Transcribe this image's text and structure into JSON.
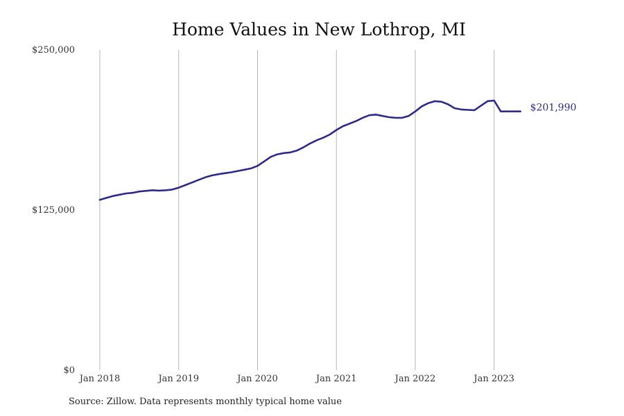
{
  "chart_data": {
    "type": "line",
    "title": "Home Values in New Lothrop, MI",
    "xlabel": "",
    "ylabel": "",
    "ylim": [
      0,
      250000
    ],
    "xlim": [
      "2018-01",
      "2023-10"
    ],
    "x_ticks": [
      "Jan 2018",
      "Jan 2019",
      "Jan 2020",
      "Jan 2021",
      "Jan 2022",
      "Jan 2023"
    ],
    "y_ticks": [
      "$0",
      "$125,000",
      "$250,000"
    ],
    "y_tick_values": [
      0,
      125000,
      250000
    ],
    "grid": "vertical",
    "line_color": "#2d2a8a",
    "end_label": "$201,990",
    "series": [
      {
        "x": [
          "2018-01",
          "2018-02",
          "2018-03",
          "2018-04",
          "2018-05",
          "2018-06",
          "2018-07",
          "2018-08",
          "2018-09",
          "2018-10",
          "2018-11",
          "2018-12",
          "2019-01",
          "2019-02",
          "2019-03",
          "2019-04",
          "2019-05",
          "2019-06",
          "2019-07",
          "2019-08",
          "2019-09",
          "2019-10",
          "2019-11",
          "2019-12",
          "2020-01",
          "2020-02",
          "2020-03",
          "2020-04",
          "2020-05",
          "2020-06",
          "2020-07",
          "2020-08",
          "2020-09",
          "2020-10",
          "2020-11",
          "2020-12",
          "2021-01",
          "2021-02",
          "2021-03",
          "2021-04",
          "2021-05",
          "2021-06",
          "2021-07",
          "2021-08",
          "2021-09",
          "2021-10",
          "2021-11",
          "2021-12",
          "2022-01",
          "2022-02",
          "2022-03",
          "2022-04",
          "2022-05",
          "2022-06",
          "2022-07",
          "2022-08",
          "2022-09",
          "2022-10",
          "2022-11",
          "2022-12",
          "2023-01",
          "2023-02",
          "2023-03",
          "2023-04",
          "2023-05"
        ],
        "values": [
          133000,
          134500,
          136000,
          137000,
          138000,
          138500,
          139500,
          140000,
          140500,
          140200,
          140500,
          141000,
          142500,
          144500,
          146500,
          148500,
          150500,
          152000,
          153000,
          153800,
          154500,
          155500,
          156500,
          157500,
          159500,
          163000,
          166500,
          168500,
          169500,
          170000,
          171500,
          174000,
          177000,
          179500,
          181500,
          184000,
          187500,
          190500,
          192500,
          194500,
          197000,
          199000,
          199500,
          198500,
          197500,
          197000,
          197000,
          198500,
          202000,
          206000,
          208500,
          210000,
          209500,
          207500,
          204500,
          203500,
          203200,
          203000,
          206500,
          210000,
          210500,
          202000,
          202000,
          202000,
          202000
        ]
      }
    ]
  },
  "source_note": "Source: Zillow. Data represents monthly typical home value"
}
